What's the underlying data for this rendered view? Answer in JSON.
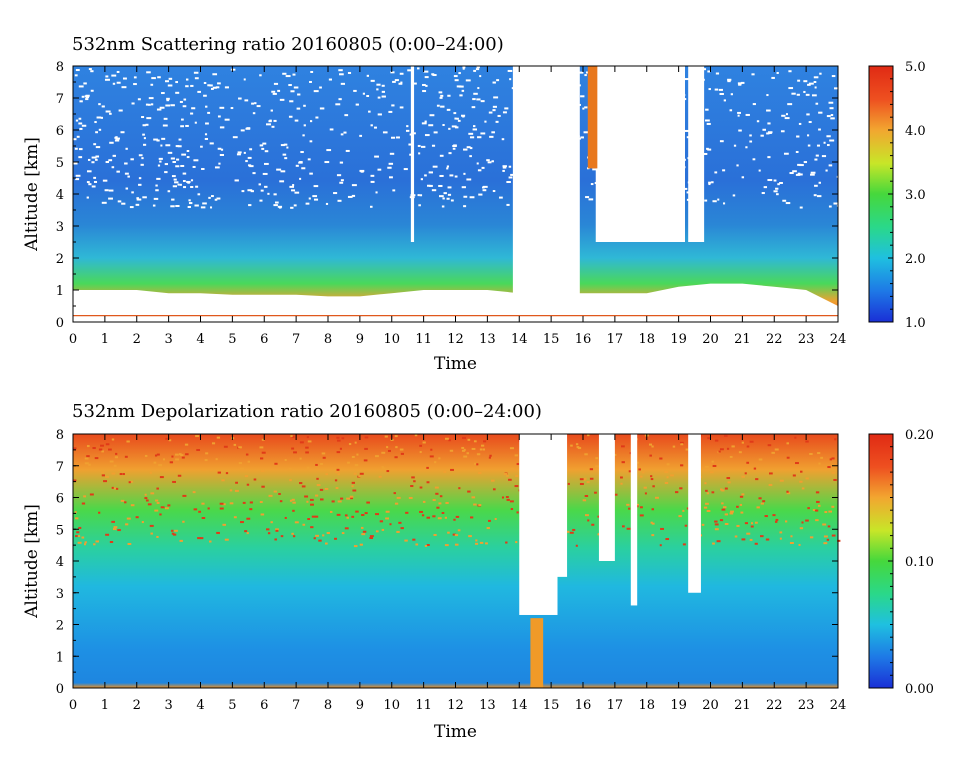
{
  "chart_data": [
    {
      "type": "heatmap",
      "title": "532nm Scattering ratio  20160805 (0:00–24:00)",
      "xlabel": "Time",
      "ylabel": "Altitude [km]",
      "x_ticks": [
        "0",
        "1",
        "2",
        "3",
        "4",
        "5",
        "6",
        "7",
        "8",
        "9",
        "10",
        "11",
        "12",
        "13",
        "14",
        "15",
        "16",
        "17",
        "18",
        "19",
        "20",
        "21",
        "22",
        "23",
        "24"
      ],
      "y_ticks": [
        "0",
        "1",
        "2",
        "3",
        "4",
        "5",
        "6",
        "7",
        "8"
      ],
      "xlim": [
        0,
        24
      ],
      "ylim": [
        0,
        8
      ],
      "colorbar": {
        "min": 1.0,
        "max": 5.0,
        "ticks": [
          "1.0",
          "2.0",
          "3.0",
          "4.0",
          "5.0"
        ],
        "colors": [
          "#1a2fd6",
          "#1e78e6",
          "#1fc0e0",
          "#2ad88a",
          "#46d83c",
          "#c8e628",
          "#f2a630",
          "#ee5020",
          "#e02a14"
        ]
      },
      "features": {
        "boundary_layer_top_km": [
          1.0,
          1.0,
          1.0,
          0.9,
          0.9,
          0.85,
          0.85,
          0.85,
          0.8,
          0.8,
          0.9,
          1.0,
          1.0,
          1.0,
          null,
          null,
          null,
          null,
          null,
          1.1,
          1.2,
          1.2,
          1.1,
          1.0,
          0.5
        ],
        "cloud_gaps_hours": [
          [
            10.6,
            10.7
          ],
          [
            13.8,
            15.9
          ],
          [
            16.4,
            19.2
          ],
          [
            19.3,
            19.8
          ]
        ]
      }
    },
    {
      "type": "heatmap",
      "title": "532nm Depolarization ratio  20160805 (0:00–24:00)",
      "xlabel": "Time",
      "ylabel": "Altitude [km]",
      "x_ticks": [
        "0",
        "1",
        "2",
        "3",
        "4",
        "5",
        "6",
        "7",
        "8",
        "9",
        "10",
        "11",
        "12",
        "13",
        "14",
        "15",
        "16",
        "17",
        "18",
        "19",
        "20",
        "21",
        "22",
        "23",
        "24"
      ],
      "y_ticks": [
        "0",
        "1",
        "2",
        "3",
        "4",
        "5",
        "6",
        "7",
        "8"
      ],
      "xlim": [
        0,
        24
      ],
      "ylim": [
        0,
        8
      ],
      "colorbar": {
        "min": 0.0,
        "max": 0.2,
        "ticks": [
          "0.00",
          "0.10",
          "0.20"
        ],
        "colors": [
          "#1a2fd6",
          "#1e78e6",
          "#1fc0e0",
          "#2ad88a",
          "#46d83c",
          "#c8e628",
          "#f2a630",
          "#ee5020",
          "#e02a14"
        ]
      }
    }
  ]
}
